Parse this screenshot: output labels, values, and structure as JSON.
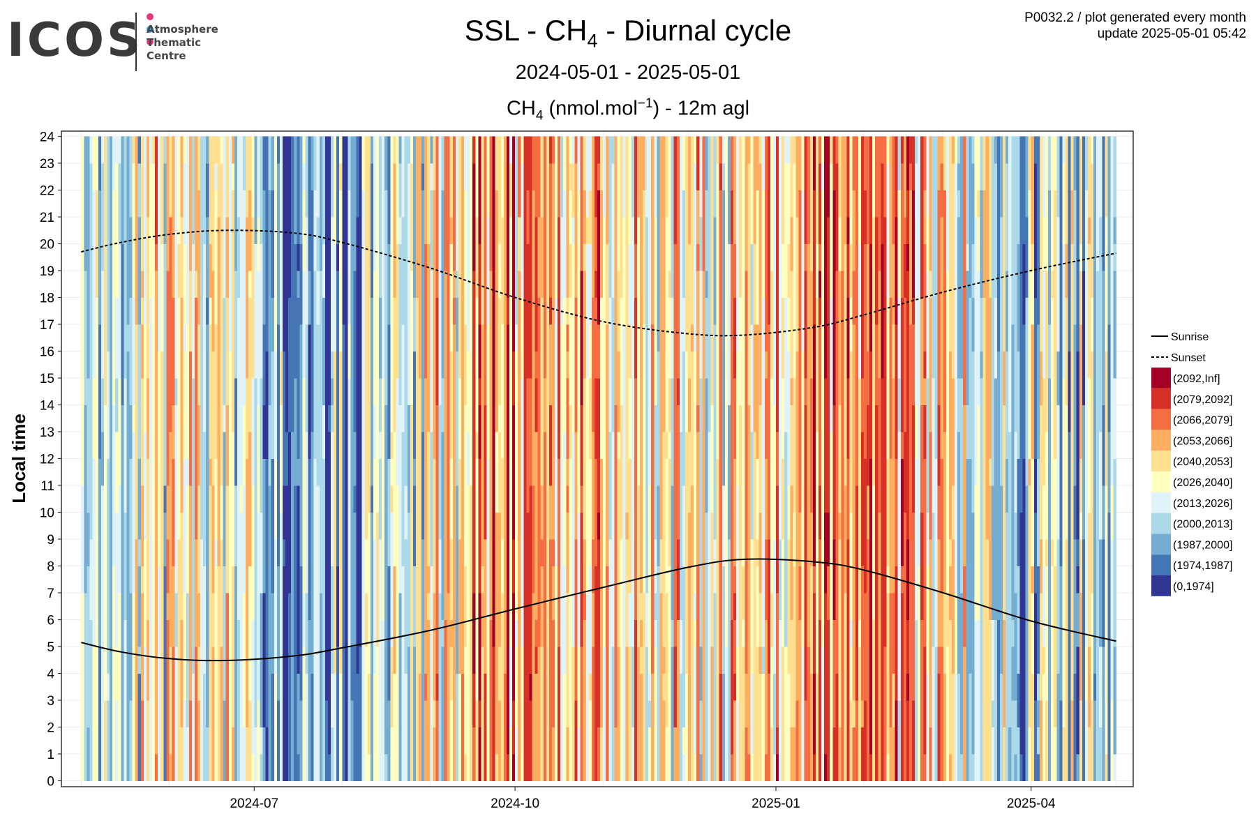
{
  "logo": {
    "word": "ICOS",
    "lines": [
      "Atmosphere",
      "Thematic",
      "Centre"
    ],
    "dot_colors": [
      "#e6377a",
      "#2f9de0",
      "#e6377a"
    ]
  },
  "header": {
    "title_prefix": "SSL - CH",
    "title_sub": "4",
    "title_suffix": " - Diurnal cycle",
    "period": "2024-05-01 - 2025-05-01",
    "unit_prefix": "CH",
    "unit_sub": "4",
    "unit_mid": " (nmol.mol",
    "unit_sup": "−1",
    "unit_suffix": ") - 12m agl",
    "code_line": "P0032.2 / plot generated every month",
    "update_line": "update  2025-05-01 05:42"
  },
  "chart_data": {
    "type": "heatmap",
    "title": "SSL - CH4 - Diurnal cycle",
    "subtitle": "2024-05-01 - 2025-05-01",
    "value_label": "CH4 (nmol.mol−1) - 12m agl",
    "ylabel": "Local time",
    "x_range": [
      "2024-05-01",
      "2025-05-01"
    ],
    "x_ticks": [
      "2024-07",
      "2024-10",
      "2025-01",
      "2025-04"
    ],
    "y_range": [
      0,
      24
    ],
    "y_ticks": [
      0,
      1,
      2,
      3,
      4,
      5,
      6,
      7,
      8,
      9,
      10,
      11,
      12,
      13,
      14,
      15,
      16,
      17,
      18,
      19,
      20,
      21,
      22,
      23,
      24
    ],
    "grid": true,
    "legend_position": "right",
    "legend": [
      {
        "label": "(2092,Inf]",
        "color": "#a50026"
      },
      {
        "label": "(2079,2092]",
        "color": "#d73027"
      },
      {
        "label": "(2066,2079]",
        "color": "#f46d43"
      },
      {
        "label": "(2053,2066]",
        "color": "#fdae61"
      },
      {
        "label": "(2040,2053]",
        "color": "#fee090"
      },
      {
        "label": "(2026,2040]",
        "color": "#ffffbf"
      },
      {
        "label": "(2013,2026]",
        "color": "#e0f3f8"
      },
      {
        "label": "(2000,2013]",
        "color": "#abd9e9"
      },
      {
        "label": "(1987,2000]",
        "color": "#74add1"
      },
      {
        "label": "(1974,1987]",
        "color": "#4575b4"
      },
      {
        "label": "(0,1974]",
        "color": "#313695"
      }
    ],
    "series": [
      {
        "name": "Sunrise",
        "style": "solid",
        "x": [
          "2024-05-01",
          "2024-05-15",
          "2024-06-01",
          "2024-06-21",
          "2024-07-15",
          "2024-08-01",
          "2024-09-01",
          "2024-10-01",
          "2024-11-01",
          "2024-12-01",
          "2024-12-21",
          "2025-01-15",
          "2025-02-01",
          "2025-03-01",
          "2025-04-01",
          "2025-05-01"
        ],
        "y": [
          5.15,
          4.8,
          4.55,
          4.48,
          4.65,
          4.95,
          5.6,
          6.4,
          7.2,
          7.95,
          8.25,
          8.15,
          7.85,
          7.0,
          5.95,
          5.2
        ]
      },
      {
        "name": "Sunset",
        "style": "dashed",
        "x": [
          "2024-05-01",
          "2024-05-15",
          "2024-06-01",
          "2024-06-21",
          "2024-07-15",
          "2024-08-01",
          "2024-09-01",
          "2024-10-01",
          "2024-11-01",
          "2024-12-01",
          "2024-12-21",
          "2025-01-15",
          "2025-02-01",
          "2025-03-01",
          "2025-04-01",
          "2025-05-01"
        ],
        "y": [
          19.7,
          20.05,
          20.35,
          20.5,
          20.4,
          20.05,
          19.1,
          18.0,
          17.1,
          16.65,
          16.6,
          16.9,
          17.35,
          18.2,
          19.0,
          19.65
        ]
      }
    ]
  }
}
